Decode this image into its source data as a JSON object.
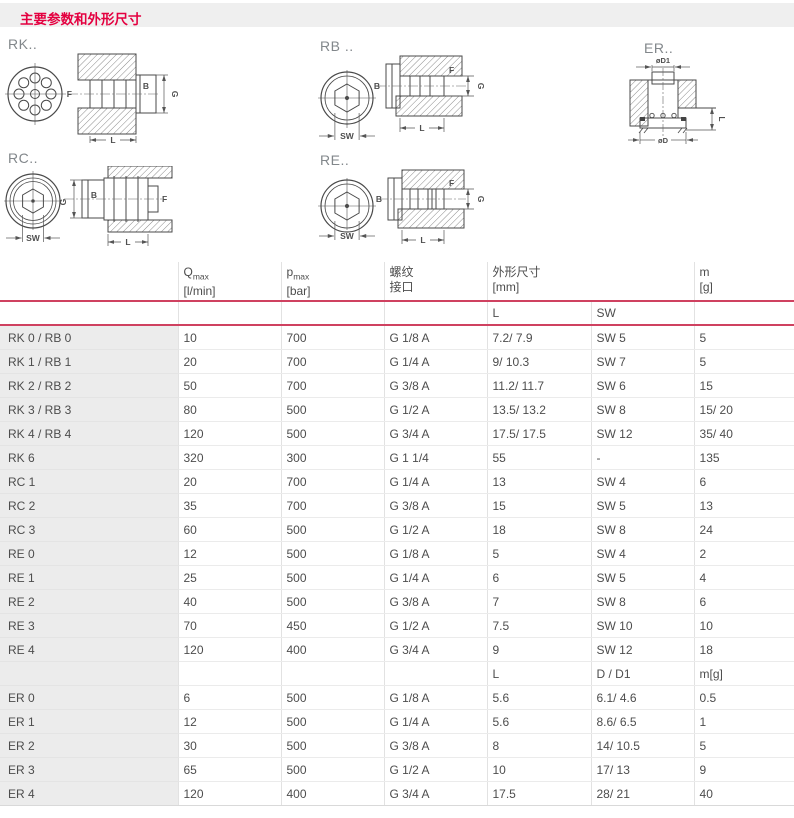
{
  "page_title": "主要参数和外形尺寸",
  "colors": {
    "accent_red": "#e40040",
    "rule_red": "#cf4160",
    "titlebar_bg": "#efefef",
    "row_label_bg": "#ececec"
  },
  "diagrams": {
    "rk": {
      "label": "RK..",
      "dim_f": "F",
      "dim_b": "B",
      "dim_g": "G",
      "dim_l": "L"
    },
    "rb": {
      "label": "RB ..",
      "dim_b": "B",
      "dim_f": "F",
      "dim_g": "G",
      "dim_l": "L",
      "dim_sw": "SW"
    },
    "er": {
      "label": "ER..",
      "dim_d1": "øD1",
      "dim_d": "øD",
      "dim_l": "L"
    },
    "rc": {
      "label": "RC..",
      "dim_g": "G",
      "dim_b": "B",
      "dim_f": "F",
      "dim_l": "L",
      "dim_sw": "SW"
    },
    "re": {
      "label": "RE..",
      "dim_b": "B",
      "dim_f": "F",
      "dim_g": "G",
      "dim_l": "L",
      "dim_sw": "SW"
    }
  },
  "table": {
    "header": {
      "q": "Q",
      "q_sub": "max",
      "q_unit": "[l/min]",
      "p": "p",
      "p_sub": "max",
      "p_unit": "[bar]",
      "thread_l1": "螺纹",
      "thread_l2": "接口",
      "dims_l1": "外形尺寸",
      "dims_unit": "[mm]",
      "m": "m",
      "m_unit": "[g]"
    },
    "subheader_top": {
      "col5": "L",
      "col6": "SW"
    },
    "rows": [
      {
        "kind": "data",
        "cells": [
          "RK 0 / RB 0",
          "10",
          "700",
          "G 1/8 A",
          "7.2/ 7.9",
          "SW 5",
          "5"
        ]
      },
      {
        "kind": "data",
        "cells": [
          "RK 1 / RB 1",
          "20",
          "700",
          "G 1/4 A",
          "9/ 10.3",
          "SW 7",
          "5"
        ]
      },
      {
        "kind": "data",
        "cells": [
          "RK 2 / RB 2",
          "50",
          "700",
          "G 3/8 A",
          "11.2/ 11.7",
          "SW 6",
          "15"
        ]
      },
      {
        "kind": "data",
        "cells": [
          "RK 3 / RB 3",
          "80",
          "500",
          "G 1/2 A",
          "13.5/ 13.2",
          "SW 8",
          "15/ 20"
        ]
      },
      {
        "kind": "data",
        "cells": [
          "RK 4 / RB 4",
          "120",
          "500",
          "G 3/4 A",
          "17.5/ 17.5",
          "SW 12",
          "35/ 40"
        ]
      },
      {
        "kind": "data",
        "cells": [
          "RK 6",
          "320",
          "300",
          "G 1 1/4",
          "55",
          "-",
          "135"
        ]
      },
      {
        "kind": "data",
        "cells": [
          "RC 1",
          "20",
          "700",
          "G 1/4 A",
          "13",
          "SW 4",
          "6"
        ]
      },
      {
        "kind": "data",
        "cells": [
          "RC 2",
          "35",
          "700",
          "G 3/8 A",
          "15",
          "SW 5",
          "13"
        ]
      },
      {
        "kind": "data",
        "cells": [
          "RC 3",
          "60",
          "500",
          "G 1/2 A",
          "18",
          "SW 8",
          "24"
        ]
      },
      {
        "kind": "data",
        "cells": [
          "RE 0",
          "12",
          "500",
          "G 1/8 A",
          "5",
          "SW 4",
          "2"
        ]
      },
      {
        "kind": "data",
        "cells": [
          "RE 1",
          "25",
          "500",
          "G 1/4 A",
          "6",
          "SW 5",
          "4"
        ]
      },
      {
        "kind": "data",
        "cells": [
          "RE 2",
          "40",
          "500",
          "G 3/8 A",
          "7",
          "SW 8",
          "6"
        ]
      },
      {
        "kind": "data",
        "cells": [
          "RE 3",
          "70",
          "450",
          "G 1/2 A",
          "7.5",
          "SW 10",
          "10"
        ]
      },
      {
        "kind": "data",
        "cells": [
          "RE 4",
          "120",
          "400",
          "G 3/4 A",
          "9",
          "SW 12",
          "18"
        ]
      },
      {
        "kind": "subheader",
        "cells": [
          "",
          "",
          "",
          "",
          "L",
          "D / D1",
          "m[g]"
        ]
      },
      {
        "kind": "data",
        "cells": [
          "ER 0",
          "6",
          "500",
          "G 1/8 A",
          "5.6",
          "6.1/ 4.6",
          "0.5"
        ]
      },
      {
        "kind": "data",
        "cells": [
          "ER 1",
          "12",
          "500",
          "G 1/4 A",
          "5.6",
          "8.6/ 6.5",
          "1"
        ]
      },
      {
        "kind": "data",
        "cells": [
          "ER 2",
          "30",
          "500",
          "G 3/8 A",
          "8",
          "14/ 10.5",
          "5"
        ]
      },
      {
        "kind": "data",
        "cells": [
          "ER 3",
          "65",
          "500",
          "G 1/2 A",
          "10",
          "17/ 13",
          "9"
        ]
      },
      {
        "kind": "data",
        "cells": [
          "ER 4",
          "120",
          "400",
          "G 3/4 A",
          "17.5",
          "28/ 21",
          "40"
        ]
      }
    ]
  }
}
